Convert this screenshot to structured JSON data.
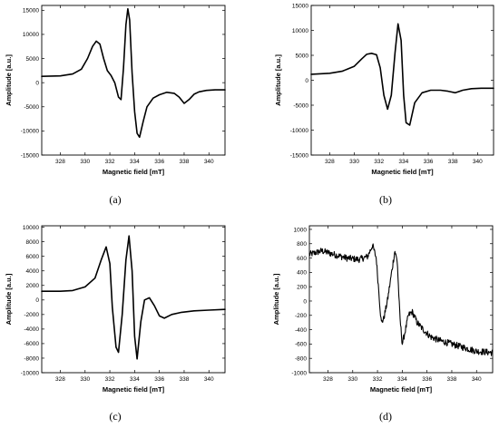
{
  "chart_data": [
    {
      "panel": "(a)",
      "type": "line",
      "xlabel": "Magnetic field [mT]",
      "ylabel": "Amplitude [a.u.]",
      "xlim": [
        326.5,
        341.3
      ],
      "ylim": [
        -15000,
        16000
      ],
      "xticks": [
        328,
        330,
        332,
        334,
        336,
        338,
        340
      ],
      "yticks": [
        -15000,
        -10000,
        -5000,
        0,
        5000,
        10000,
        15000
      ],
      "noisy": false,
      "series": [
        {
          "x": [
            326.5,
            328.0,
            329.0,
            329.7,
            330.2,
            330.6,
            330.9,
            331.2,
            331.5,
            331.8,
            332.1,
            332.4,
            332.7,
            332.9,
            333.1,
            333.3,
            333.45,
            333.6,
            333.8,
            334.0,
            334.2,
            334.4,
            334.7,
            335.0,
            335.5,
            336.0,
            336.6,
            337.2,
            337.6,
            338.0,
            338.4,
            338.8,
            339.2,
            339.8,
            340.5,
            341.3
          ],
          "y": [
            1300,
            1400,
            1800,
            2800,
            5000,
            7500,
            8600,
            8000,
            5000,
            2500,
            1500,
            0,
            -3000,
            -3500,
            3000,
            12000,
            15300,
            13000,
            2000,
            -6000,
            -10500,
            -11300,
            -8000,
            -5000,
            -3200,
            -2500,
            -2000,
            -2200,
            -3000,
            -4300,
            -3500,
            -2400,
            -1900,
            -1600,
            -1500,
            -1500
          ]
        }
      ]
    },
    {
      "panel": "(b)",
      "type": "line",
      "xlabel": "Magnetic field [mT]",
      "ylabel": "Amplitude [a.u.]",
      "xlim": [
        326.5,
        341.3
      ],
      "ylim": [
        -15000,
        15000
      ],
      "xticks": [
        328,
        330,
        332,
        334,
        336,
        338,
        340
      ],
      "yticks": [
        -15000,
        -10000,
        -5000,
        0,
        5000,
        10000,
        15000
      ],
      "noisy": false,
      "series": [
        {
          "x": [
            326.5,
            328.0,
            329.0,
            330.0,
            330.6,
            331.0,
            331.4,
            331.8,
            332.1,
            332.4,
            332.7,
            333.0,
            333.3,
            333.55,
            333.8,
            334.0,
            334.2,
            334.5,
            334.9,
            335.5,
            336.2,
            337.0,
            337.6,
            338.2,
            338.8,
            339.5,
            340.3,
            341.3
          ],
          "y": [
            1200,
            1400,
            1800,
            2800,
            4300,
            5200,
            5400,
            5100,
            2500,
            -3000,
            -5800,
            -3000,
            5500,
            11300,
            8000,
            -3000,
            -8500,
            -9000,
            -4500,
            -2500,
            -2000,
            -2000,
            -2200,
            -2500,
            -2000,
            -1700,
            -1600,
            -1600
          ]
        }
      ]
    },
    {
      "panel": "(c)",
      "type": "line",
      "xlabel": "Magnetic field [mT]",
      "ylabel": "Amplitude [a.u.]",
      "xlim": [
        326.5,
        341.3
      ],
      "ylim": [
        -10000,
        10200
      ],
      "xticks": [
        328,
        330,
        332,
        334,
        336,
        338,
        340
      ],
      "yticks": [
        -10000,
        -8000,
        -6000,
        -4000,
        -2000,
        0,
        2000,
        4000,
        6000,
        8000,
        10000
      ],
      "noisy": false,
      "series": [
        {
          "x": [
            326.5,
            328.0,
            329.0,
            330.0,
            330.8,
            331.3,
            331.7,
            332.0,
            332.2,
            332.5,
            332.7,
            333.0,
            333.3,
            333.55,
            333.8,
            334.0,
            334.2,
            334.5,
            334.8,
            335.2,
            335.6,
            336.0,
            336.4,
            337.0,
            337.8,
            338.8,
            340.0,
            341.3
          ],
          "y": [
            1200,
            1200,
            1300,
            1800,
            3000,
            5500,
            7300,
            5000,
            -1000,
            -6500,
            -7200,
            -2000,
            5500,
            8800,
            4000,
            -5000,
            -8100,
            -3000,
            0,
            300,
            -800,
            -2200,
            -2500,
            -2000,
            -1700,
            -1500,
            -1400,
            -1300
          ]
        }
      ]
    },
    {
      "panel": "(d)",
      "type": "line",
      "xlabel": "Magnetic field [mT]",
      "ylabel": "Amplitude [a.u.]",
      "xlim": [
        326.5,
        341.3
      ],
      "ylim": [
        -1000,
        1050
      ],
      "xticks": [
        328,
        330,
        332,
        334,
        336,
        338,
        340
      ],
      "yticks": [
        -1000,
        -800,
        -600,
        -400,
        -200,
        0,
        200,
        400,
        600,
        800,
        1000
      ],
      "noisy": true,
      "series": [
        {
          "x": [
            326.5,
            327.5,
            328.5,
            329.5,
            330.5,
            331.2,
            331.6,
            331.9,
            332.1,
            332.3,
            332.5,
            332.8,
            333.1,
            333.4,
            333.6,
            333.8,
            334.0,
            334.2,
            334.5,
            334.8,
            335.2,
            335.7,
            336.3,
            337.0,
            338.0,
            339.0,
            340.0,
            341.3
          ],
          "y": [
            650,
            700,
            650,
            600,
            580,
            620,
            780,
            600,
            150,
            -300,
            -250,
            0,
            350,
            700,
            550,
            -200,
            -600,
            -450,
            -200,
            -150,
            -300,
            -400,
            -500,
            -550,
            -600,
            -650,
            -700,
            -720
          ]
        }
      ]
    }
  ],
  "captions": [
    "(a)",
    "(b)",
    "(c)",
    "(d)"
  ]
}
